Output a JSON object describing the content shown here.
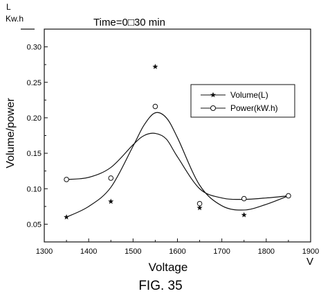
{
  "header": {
    "unit_top": "L",
    "unit_bottom": "Kw.h",
    "annotation": "Time=0□30 min",
    "caption": "FIG. 35"
  },
  "chart_data": {
    "type": "scatter",
    "title": "",
    "xlabel": "Voltage",
    "x_unit": "V",
    "ylabel": "Volume/power",
    "xlim": [
      1300,
      1900
    ],
    "ylim": [
      0.025,
      0.325
    ],
    "x_ticks": [
      "1300",
      "1400",
      "1500",
      "1600",
      "1700",
      "1800",
      "1900"
    ],
    "y_ticks": [
      "0.05",
      "0.10",
      "0.15",
      "0.20",
      "0.25",
      "0.30"
    ],
    "x": [
      1350,
      1450,
      1550,
      1650,
      1750,
      1850
    ],
    "legend_position": "right",
    "grid": false,
    "series": [
      {
        "name": "Volume(L)",
        "marker": "star",
        "values": [
          0.06,
          0.082,
          0.272,
          0.073,
          0.063,
          0.09
        ],
        "fit_curve": {
          "x": [
            1350,
            1400,
            1450,
            1500,
            1525,
            1550,
            1575,
            1600,
            1650,
            1700,
            1750,
            1800,
            1850
          ],
          "y": [
            0.06,
            0.075,
            0.102,
            0.16,
            0.19,
            0.207,
            0.2,
            0.172,
            0.105,
            0.076,
            0.07,
            0.078,
            0.09
          ]
        }
      },
      {
        "name": "Power(kW.h)",
        "marker": "circle",
        "values": [
          0.113,
          0.115,
          0.216,
          0.079,
          0.086,
          0.09
        ],
        "fit_curve": {
          "x": [
            1350,
            1400,
            1450,
            1500,
            1525,
            1550,
            1575,
            1600,
            1650,
            1700,
            1750,
            1800,
            1850
          ],
          "y": [
            0.113,
            0.116,
            0.13,
            0.162,
            0.175,
            0.178,
            0.17,
            0.145,
            0.1,
            0.087,
            0.085,
            0.087,
            0.09
          ]
        }
      }
    ]
  }
}
